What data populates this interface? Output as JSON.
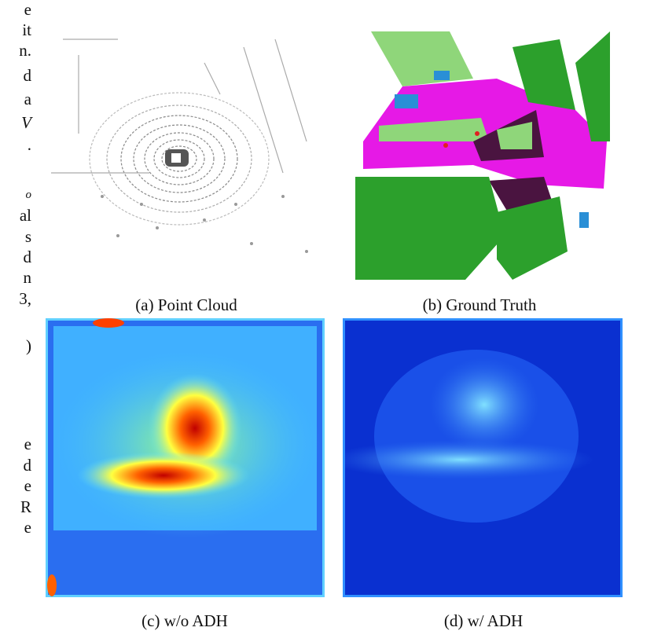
{
  "margin_text": [
    "e",
    "it",
    "n.",
    "d",
    "a",
    "V",
    ".",
    "o",
    "al",
    "s",
    "d",
    "n",
    "3,",
    ")",
    "e",
    "d",
    "e",
    "R",
    "e"
  ],
  "figure": {
    "panels": [
      {
        "caption": "(a) Point Cloud"
      },
      {
        "caption": "(b) Ground Truth"
      },
      {
        "caption": "(c) w/o ADH"
      },
      {
        "caption": "(d) w/ ADH"
      }
    ]
  }
}
